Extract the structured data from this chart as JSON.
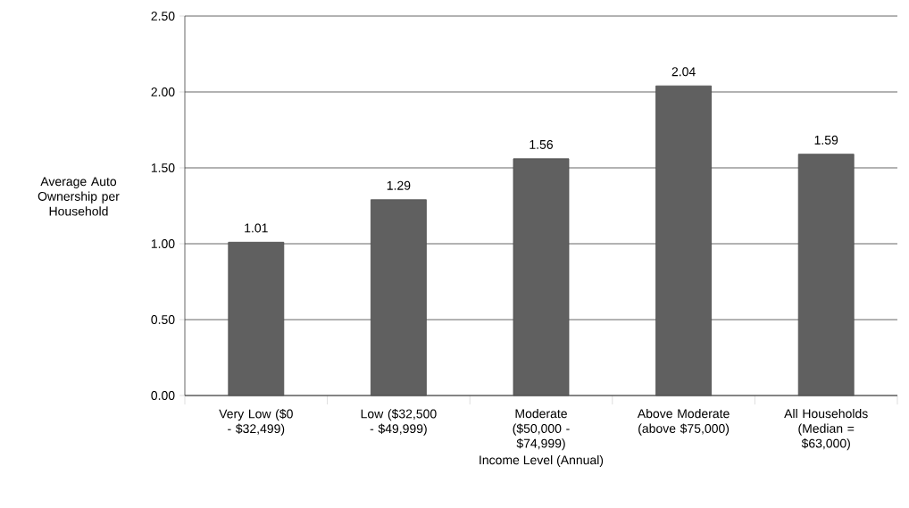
{
  "chart_data": {
    "type": "bar",
    "xlabel": "Income Level (Annual)",
    "ylabel": "Average Auto Ownership per Household",
    "categories": [
      "Very Low ($0 - $32,499)",
      "Low ($32,500 - $49,999)",
      "Moderate ($50,000 - $74,999)",
      "Above Moderate (above $75,000)",
      "All Households (Median = $63,000)"
    ],
    "values": [
      1.01,
      1.29,
      1.56,
      2.04,
      1.59
    ],
    "value_labels": [
      "1.01",
      "1.29",
      "1.56",
      "2.04",
      "1.59"
    ],
    "color": "#606060",
    "ylim": [
      0,
      2.5
    ],
    "yticks": [
      {
        "value": 0,
        "label": "0.00"
      },
      {
        "value": 0.5,
        "label": "0.50"
      },
      {
        "value": 1,
        "label": "1.00"
      },
      {
        "value": 1.5,
        "label": "1.50"
      },
      {
        "value": 2,
        "label": "2.00"
      },
      {
        "value": 2.5,
        "label": "2.50"
      }
    ],
    "grid": "y"
  }
}
